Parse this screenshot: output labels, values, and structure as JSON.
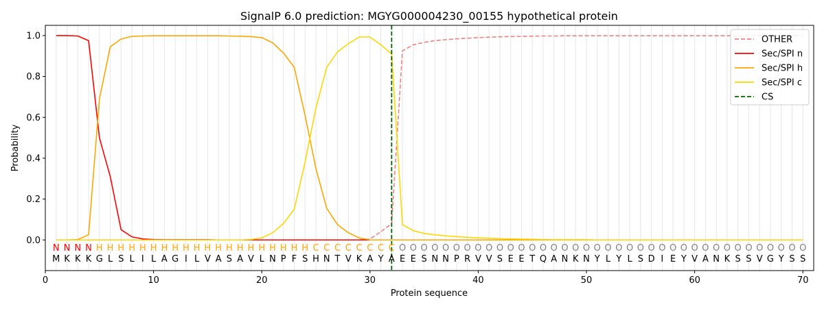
{
  "chart_data": {
    "type": "line",
    "title": "SignalP 6.0 prediction: MGYG000004230_00155 hypothetical protein",
    "xlabel": "Protein sequence",
    "ylabel": "Probability",
    "xlim": [
      0,
      71
    ],
    "ylim": [
      -0.15,
      1.05
    ],
    "xticks": [
      0,
      10,
      20,
      30,
      40,
      50,
      60,
      70
    ],
    "yticks": [
      0.0,
      0.2,
      0.4,
      0.6,
      0.8,
      1.0
    ],
    "xtick_labels": [
      "0",
      "10",
      "20",
      "30",
      "40",
      "50",
      "60",
      "70"
    ],
    "ytick_labels": [
      "0.0",
      "0.2",
      "0.4",
      "0.6",
      "0.8",
      "1.0"
    ],
    "legend_position": "top-right",
    "grid": "vertical lines at each residue",
    "sequence": [
      "M",
      "K",
      "K",
      "K",
      "G",
      "L",
      "S",
      "L",
      "I",
      "L",
      "A",
      "G",
      "I",
      "L",
      "V",
      "A",
      "S",
      "A",
      "V",
      "L",
      "N",
      "P",
      "F",
      "S",
      "H",
      "N",
      "T",
      "V",
      "K",
      "A",
      "Y",
      "A",
      "E",
      "E",
      "S",
      "N",
      "N",
      "P",
      "R",
      "V",
      "V",
      "S",
      "E",
      "E",
      "T",
      "Q",
      "A",
      "N",
      "K",
      "N",
      "Y",
      "L",
      "Y",
      "L",
      "S",
      "D",
      "I",
      "E",
      "Y",
      "V",
      "A",
      "N",
      "K",
      "S",
      "S",
      "V",
      "G",
      "Y",
      "S",
      "S"
    ],
    "labels": [
      "N",
      "N",
      "N",
      "N",
      "H",
      "H",
      "H",
      "H",
      "H",
      "H",
      "H",
      "H",
      "H",
      "H",
      "H",
      "H",
      "H",
      "H",
      "H",
      "H",
      "H",
      "H",
      "H",
      "H",
      "C",
      "C",
      "C",
      "C",
      "C",
      "C",
      "C",
      "C",
      "O",
      "O",
      "O",
      "O",
      "O",
      "O",
      "O",
      "O",
      "O",
      "O",
      "O",
      "O",
      "O",
      "O",
      "O",
      "O",
      "O",
      "O",
      "O",
      "O",
      "O",
      "O",
      "O",
      "O",
      "O",
      "O",
      "O",
      "O",
      "O",
      "O",
      "O",
      "O",
      "O",
      "O",
      "O",
      "O",
      "O",
      "O"
    ],
    "label_colors": {
      "N": "#ff0000",
      "H": "#ffa500",
      "C": "#ffa500",
      "O": "#808080"
    },
    "series": [
      {
        "name": "OTHER",
        "color": "#f08080",
        "dash": "dashed",
        "values": [
          0,
          0,
          0,
          0,
          0,
          0,
          0,
          0,
          0,
          0,
          0,
          0,
          0,
          0,
          0,
          0,
          0,
          0,
          0,
          0,
          0,
          0,
          0,
          0,
          0,
          0,
          0,
          0,
          0,
          0.005,
          0.04,
          0.08,
          0.925,
          0.955,
          0.967,
          0.975,
          0.98,
          0.984,
          0.987,
          0.99,
          0.992,
          0.994,
          0.995,
          0.996,
          0.997,
          0.998,
          0.998,
          0.999,
          0.999,
          0.999,
          0.999,
          0.999,
          0.999,
          0.999,
          0.999,
          0.999,
          0.999,
          0.999,
          0.999,
          0.999,
          0.999,
          0.999,
          0.999,
          0.999,
          0.999,
          0.999,
          0.999,
          0.999,
          0.999,
          0.999
        ]
      },
      {
        "name": "Sec/SPI n",
        "color": "#ff0000",
        "dash": "solid",
        "values": [
          1.0,
          1.0,
          0.998,
          0.975,
          0.5,
          0.31,
          0.05,
          0.015,
          0.005,
          0.002,
          0.001,
          0.001,
          0.001,
          0.001,
          0.001,
          0,
          0,
          0,
          0,
          0,
          0,
          0,
          0,
          0,
          0,
          0,
          0,
          0,
          0,
          0,
          0,
          0,
          0,
          0,
          0,
          0,
          0,
          0,
          0,
          0,
          0,
          0,
          0,
          0,
          0,
          0,
          0,
          0,
          0,
          0,
          0,
          0,
          0,
          0,
          0,
          0,
          0,
          0,
          0,
          0,
          0,
          0,
          0,
          0,
          0,
          0,
          0,
          0,
          0,
          0
        ]
      },
      {
        "name": "Sec/SPI h",
        "color": "#ffa500",
        "dash": "solid",
        "values": [
          0,
          0,
          0.002,
          0.025,
          0.69,
          0.945,
          0.983,
          0.996,
          0.998,
          0.999,
          0.999,
          0.999,
          0.999,
          0.999,
          0.999,
          0.999,
          0.998,
          0.997,
          0.995,
          0.99,
          0.965,
          0.915,
          0.845,
          0.61,
          0.35,
          0.155,
          0.075,
          0.035,
          0.01,
          0,
          0,
          0,
          0,
          0,
          0,
          0,
          0,
          0,
          0,
          0,
          0,
          0,
          0,
          0,
          0,
          0,
          0,
          0,
          0,
          0,
          0,
          0,
          0,
          0,
          0,
          0,
          0,
          0,
          0,
          0,
          0,
          0,
          0,
          0,
          0,
          0,
          0,
          0,
          0,
          0
        ]
      },
      {
        "name": "Sec/SPI c",
        "color": "#ffd700",
        "dash": "solid",
        "values": [
          0,
          0,
          0,
          0,
          0,
          0,
          0,
          0,
          0,
          0,
          0,
          0,
          0,
          0,
          0,
          0,
          0,
          0,
          0.002,
          0.01,
          0.035,
          0.08,
          0.15,
          0.38,
          0.645,
          0.845,
          0.92,
          0.96,
          0.993,
          0.993,
          0.955,
          0.91,
          0.075,
          0.045,
          0.032,
          0.025,
          0.02,
          0.016,
          0.013,
          0.01,
          0.008,
          0.006,
          0.005,
          0.004,
          0.003,
          0.002,
          0.001,
          0.001,
          0.001,
          0.001,
          0,
          0,
          0,
          0,
          0,
          0,
          0,
          0,
          0,
          0,
          0,
          0,
          0,
          0,
          0,
          0,
          0,
          0,
          0,
          0
        ]
      }
    ],
    "cs": {
      "name": "CS",
      "color": "#006400",
      "dash": "dashed",
      "x": 32
    }
  }
}
